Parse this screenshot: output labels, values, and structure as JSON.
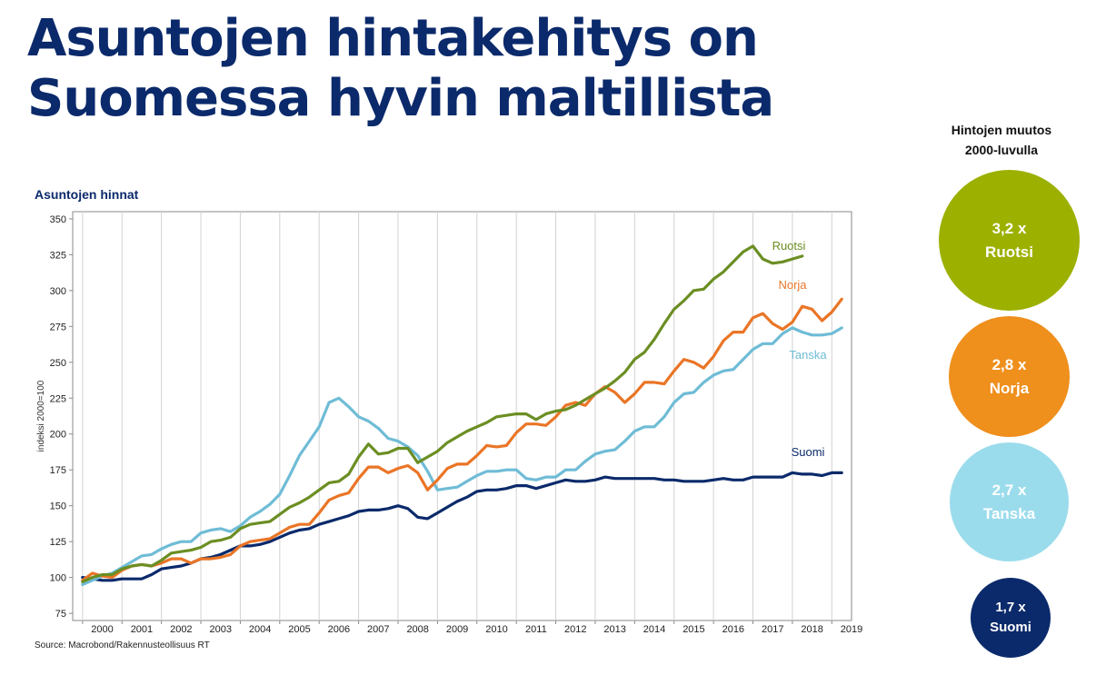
{
  "slide": {
    "title_line1": "Asuntojen hintakehitys on",
    "title_line2": "Suomessa hyvin maltillista",
    "chart_title": "Asuntojen hinnat",
    "source": "Source: Macrobond/Rakennusteollisuus RT"
  },
  "sidebar": {
    "heading_line1": "Hintojen muutos",
    "heading_line2": "2000-luvulla",
    "circles": [
      {
        "value": "3,2 x",
        "label": "Ruotsi",
        "color": "#9cb000"
      },
      {
        "value": "2,8 x",
        "label": "Norja",
        "color": "#ef8f1c"
      },
      {
        "value": "2,7 x",
        "label": "Tanska",
        "color": "#9bdcec"
      },
      {
        "value": "1,7 x",
        "label": "Suomi",
        "color": "#0b2a6b"
      }
    ]
  },
  "chart_data": {
    "type": "line",
    "ylabel": "indeksi 2000=100",
    "ylim": [
      70,
      355
    ],
    "yticks": [
      75,
      100,
      125,
      150,
      175,
      200,
      225,
      250,
      275,
      300,
      325,
      350
    ],
    "xlim": [
      1999.75,
      2019.5
    ],
    "year_labels": [
      "2000",
      "2001",
      "2002",
      "2003",
      "2004",
      "2005",
      "2006",
      "2007",
      "2008",
      "2009",
      "2010",
      "2011",
      "2012",
      "2013",
      "2014",
      "2015",
      "2016",
      "2017",
      "2018",
      "2019"
    ],
    "grid": "vertical",
    "series": [
      {
        "name": "Suomi",
        "color": "#0b2a6b",
        "x": [
          2000.0,
          2000.25,
          2000.5,
          2000.75,
          2001.0,
          2001.25,
          2001.5,
          2001.75,
          2002.0,
          2002.25,
          2002.5,
          2002.75,
          2003.0,
          2003.25,
          2003.5,
          2003.75,
          2004.0,
          2004.25,
          2004.5,
          2004.75,
          2005.0,
          2005.25,
          2005.5,
          2005.75,
          2006.0,
          2006.25,
          2006.5,
          2006.75,
          2007.0,
          2007.25,
          2007.5,
          2007.75,
          2008.0,
          2008.25,
          2008.5,
          2008.75,
          2009.0,
          2009.25,
          2009.5,
          2009.75,
          2010.0,
          2010.25,
          2010.5,
          2010.75,
          2011.0,
          2011.25,
          2011.5,
          2011.75,
          2012.0,
          2012.25,
          2012.5,
          2012.75,
          2013.0,
          2013.25,
          2013.5,
          2013.75,
          2014.0,
          2014.25,
          2014.5,
          2014.75,
          2015.0,
          2015.25,
          2015.5,
          2015.75,
          2016.0,
          2016.25,
          2016.5,
          2016.75,
          2017.0,
          2017.25,
          2017.5,
          2017.75,
          2018.0,
          2018.25,
          2018.5,
          2018.75,
          2019.0,
          2019.25
        ],
        "y": [
          100,
          99,
          98,
          98,
          99,
          99,
          99,
          102,
          106,
          107,
          108,
          110,
          113,
          114,
          116,
          119,
          122,
          122,
          123,
          125,
          128,
          131,
          133,
          134,
          137,
          139,
          141,
          143,
          146,
          147,
          147,
          148,
          150,
          148,
          142,
          141,
          145,
          149,
          153,
          156,
          160,
          161,
          161,
          162,
          164,
          164,
          162,
          164,
          166,
          168,
          167,
          167,
          168,
          170,
          169,
          169,
          169,
          169,
          169,
          168,
          168,
          167,
          167,
          167,
          168,
          169,
          168,
          168,
          170,
          170,
          170,
          170,
          173,
          172,
          172,
          171,
          173,
          173
        ]
      },
      {
        "name": "Tanska",
        "color": "#6fbcd6",
        "x": [
          2000.0,
          2000.25,
          2000.5,
          2000.75,
          2001.0,
          2001.25,
          2001.5,
          2001.75,
          2002.0,
          2002.25,
          2002.5,
          2002.75,
          2003.0,
          2003.25,
          2003.5,
          2003.75,
          2004.0,
          2004.25,
          2004.5,
          2004.75,
          2005.0,
          2005.25,
          2005.5,
          2005.75,
          2006.0,
          2006.25,
          2006.5,
          2006.75,
          2007.0,
          2007.25,
          2007.5,
          2007.75,
          2008.0,
          2008.25,
          2008.5,
          2008.75,
          2009.0,
          2009.25,
          2009.5,
          2009.75,
          2010.0,
          2010.25,
          2010.5,
          2010.75,
          2011.0,
          2011.25,
          2011.5,
          2011.75,
          2012.0,
          2012.25,
          2012.5,
          2012.75,
          2013.0,
          2013.25,
          2013.5,
          2013.75,
          2014.0,
          2014.25,
          2014.5,
          2014.75,
          2015.0,
          2015.25,
          2015.5,
          2015.75,
          2016.0,
          2016.25,
          2016.5,
          2016.75,
          2017.0,
          2017.25,
          2017.5,
          2017.75,
          2018.0,
          2018.25,
          2018.5,
          2018.75,
          2019.0,
          2019.25
        ],
        "y": [
          95,
          98,
          101,
          103,
          107,
          111,
          115,
          116,
          120,
          123,
          125,
          125,
          131,
          133,
          134,
          132,
          136,
          142,
          146,
          151,
          158,
          171,
          185,
          195,
          205,
          222,
          225,
          219,
          212,
          209,
          204,
          197,
          195,
          191,
          185,
          174,
          161,
          162,
          163,
          167,
          171,
          174,
          174,
          175,
          175,
          169,
          168,
          170,
          170,
          175,
          175,
          181,
          186,
          188,
          189,
          195,
          202,
          205,
          205,
          212,
          222,
          228,
          229,
          236,
          241,
          244,
          245,
          252,
          259,
          263,
          263,
          270,
          274,
          271,
          269,
          269,
          270,
          274
        ]
      },
      {
        "name": "Norja",
        "color": "#ea7526",
        "x": [
          2000.0,
          2000.25,
          2000.5,
          2000.75,
          2001.0,
          2001.25,
          2001.5,
          2001.75,
          2002.0,
          2002.25,
          2002.5,
          2002.75,
          2003.0,
          2003.25,
          2003.5,
          2003.75,
          2004.0,
          2004.25,
          2004.5,
          2004.75,
          2005.0,
          2005.25,
          2005.5,
          2005.75,
          2006.0,
          2006.25,
          2006.5,
          2006.75,
          2007.0,
          2007.25,
          2007.5,
          2007.75,
          2008.0,
          2008.25,
          2008.5,
          2008.75,
          2009.0,
          2009.25,
          2009.5,
          2009.75,
          2010.0,
          2010.25,
          2010.5,
          2010.75,
          2011.0,
          2011.25,
          2011.5,
          2011.75,
          2012.0,
          2012.25,
          2012.5,
          2012.75,
          2013.0,
          2013.25,
          2013.5,
          2013.75,
          2014.0,
          2014.25,
          2014.5,
          2014.75,
          2015.0,
          2015.25,
          2015.5,
          2015.75,
          2016.0,
          2016.25,
          2016.5,
          2016.75,
          2017.0,
          2017.25,
          2017.5,
          2017.75,
          2018.0,
          2018.25,
          2018.5,
          2018.75,
          2019.0,
          2019.25
        ],
        "y": [
          98,
          103,
          101,
          100,
          105,
          108,
          109,
          108,
          110,
          113,
          113,
          110,
          113,
          113,
          114,
          116,
          122,
          125,
          126,
          127,
          131,
          135,
          137,
          137,
          145,
          154,
          157,
          159,
          169,
          177,
          177,
          173,
          176,
          178,
          173,
          161,
          168,
          176,
          179,
          179,
          185,
          192,
          191,
          192,
          201,
          207,
          207,
          206,
          212,
          220,
          222,
          220,
          228,
          233,
          229,
          222,
          228,
          236,
          236,
          235,
          244,
          252,
          250,
          246,
          254,
          265,
          271,
          271,
          281,
          284,
          277,
          273,
          278,
          289,
          287,
          279,
          285,
          294
        ]
      },
      {
        "name": "Ruotsi",
        "color": "#6b8e23",
        "x": [
          2000.0,
          2000.25,
          2000.5,
          2000.75,
          2001.0,
          2001.25,
          2001.5,
          2001.75,
          2002.0,
          2002.25,
          2002.5,
          2002.75,
          2003.0,
          2003.25,
          2003.5,
          2003.75,
          2004.0,
          2004.25,
          2004.5,
          2004.75,
          2005.0,
          2005.25,
          2005.5,
          2005.75,
          2006.0,
          2006.25,
          2006.5,
          2006.75,
          2007.0,
          2007.25,
          2007.5,
          2007.75,
          2008.0,
          2008.25,
          2008.5,
          2008.75,
          2009.0,
          2009.25,
          2009.5,
          2009.75,
          2010.0,
          2010.25,
          2010.5,
          2010.75,
          2011.0,
          2011.25,
          2011.5,
          2011.75,
          2012.0,
          2012.25,
          2012.5,
          2012.75,
          2013.0,
          2013.25,
          2013.5,
          2013.75,
          2014.0,
          2014.25,
          2014.5,
          2014.75,
          2015.0,
          2015.25,
          2015.5,
          2015.75,
          2016.0,
          2016.25,
          2016.5,
          2016.75,
          2017.0,
          2017.25,
          2017.5,
          2017.75,
          2018.0,
          2018.25
        ],
        "y": [
          97,
          100,
          102,
          102,
          106,
          108,
          109,
          108,
          112,
          117,
          118,
          119,
          121,
          125,
          126,
          128,
          134,
          137,
          138,
          139,
          144,
          149,
          152,
          156,
          161,
          166,
          167,
          172,
          184,
          193,
          186,
          187,
          190,
          190,
          180,
          184,
          188,
          194,
          198,
          202,
          205,
          208,
          212,
          213,
          214,
          214,
          210,
          214,
          216,
          217,
          220,
          224,
          228,
          232,
          237,
          243,
          252,
          257,
          266,
          277,
          287,
          293,
          300,
          301,
          308,
          313,
          320,
          327,
          331,
          322,
          319,
          320,
          322,
          324
        ]
      }
    ]
  }
}
